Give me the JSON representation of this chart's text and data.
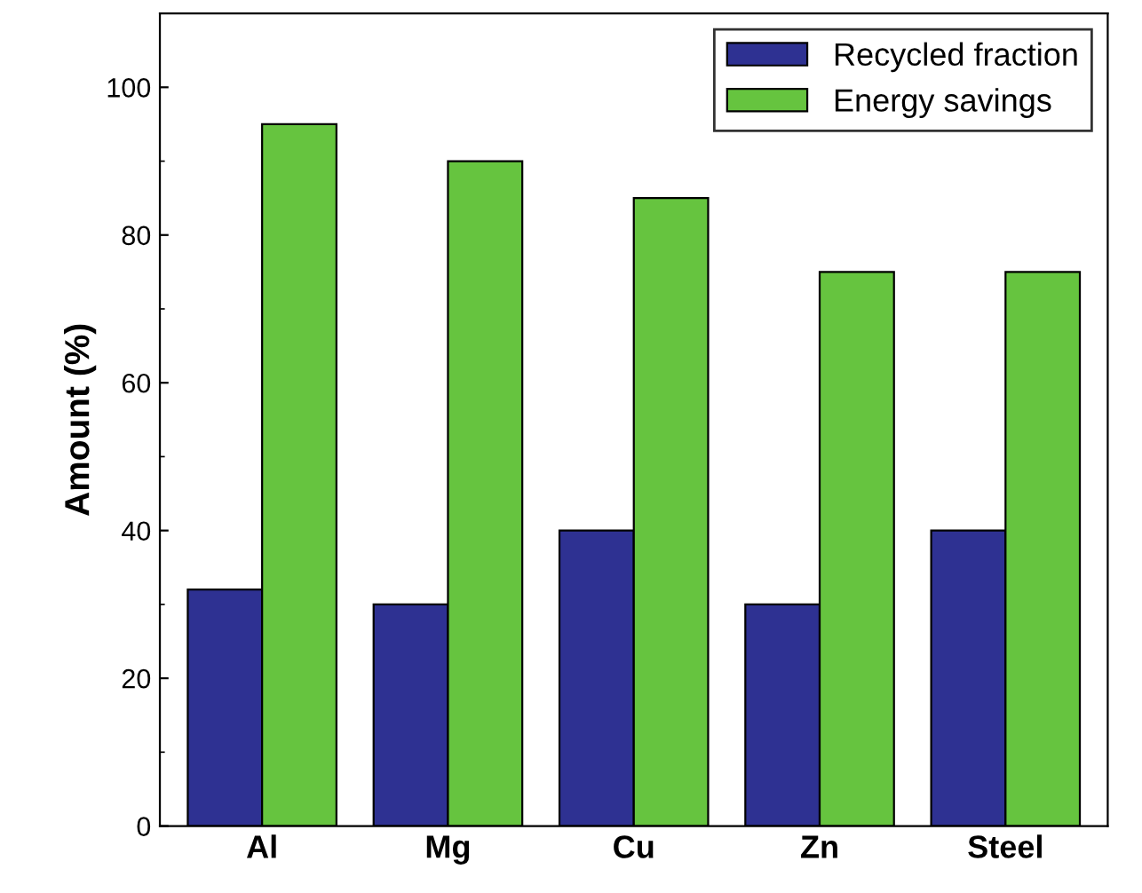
{
  "chart_data": {
    "type": "bar",
    "ylabel": "Amount (%)",
    "categories": [
      "Al",
      "Mg",
      "Cu",
      "Zn",
      "Steel"
    ],
    "series": [
      {
        "name": "Recycled fraction",
        "color": "#2e3192",
        "values": [
          32,
          30,
          40,
          30,
          40
        ]
      },
      {
        "name": "Energy savings",
        "color": "#66c43f",
        "values": [
          95,
          90,
          85,
          75,
          75
        ]
      }
    ],
    "ylim": [
      0,
      110
    ],
    "yticks": [
      0,
      20,
      40,
      60,
      80,
      100
    ],
    "grid": false,
    "legend": "top right"
  }
}
